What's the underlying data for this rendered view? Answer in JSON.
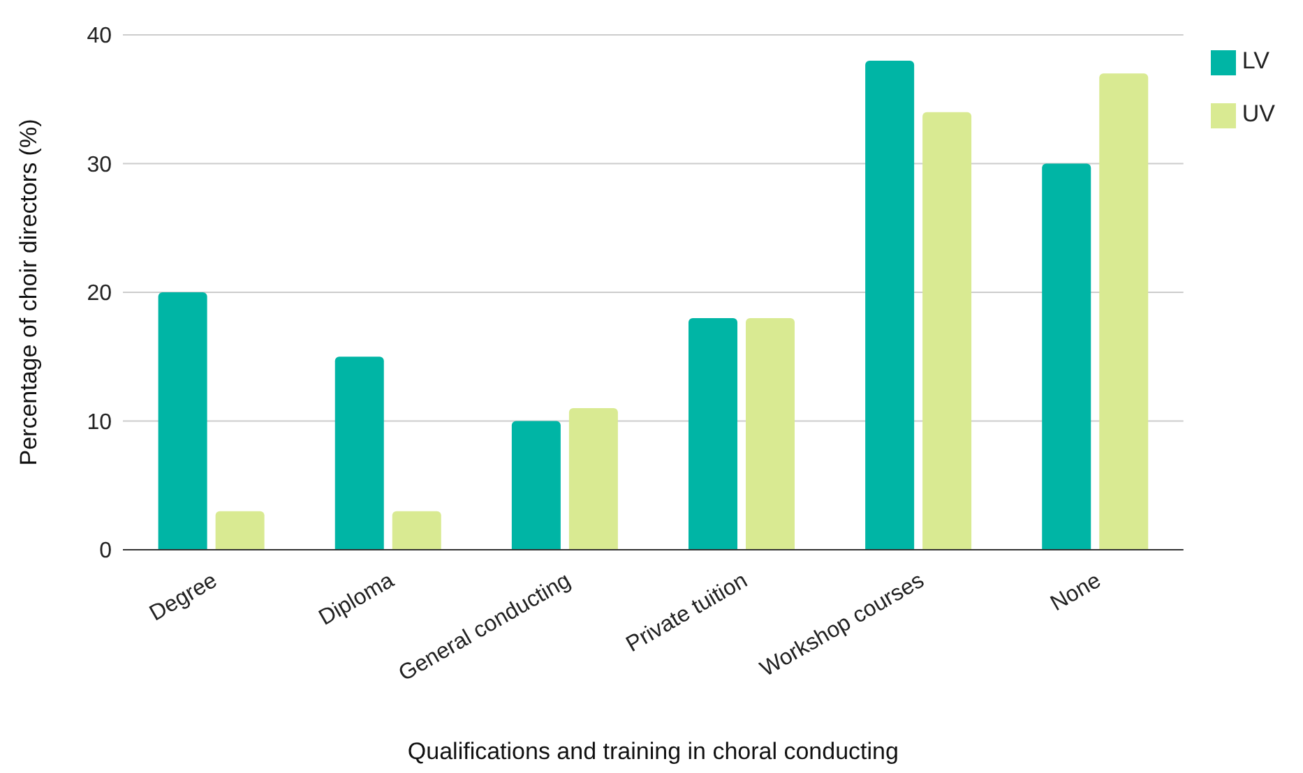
{
  "chart_data": {
    "type": "bar",
    "xlabel": "Qualifications and training in choral conducting",
    "ylabel": "Percentage of choir directors (%)",
    "categories": [
      "Degree",
      "Diploma",
      "General conducting",
      "Private tuition",
      "Workshop courses",
      "None"
    ],
    "series": [
      {
        "name": "LV",
        "color": "#00b5a5",
        "values": [
          20,
          15,
          10,
          18,
          38,
          30
        ]
      },
      {
        "name": "UV",
        "color": "#d9ea92",
        "values": [
          3,
          3,
          11,
          18,
          34,
          37
        ]
      }
    ],
    "ylim": [
      0,
      40
    ],
    "yticks": [
      0,
      10,
      20,
      30,
      40
    ],
    "grid": "y",
    "legend": "top right"
  }
}
